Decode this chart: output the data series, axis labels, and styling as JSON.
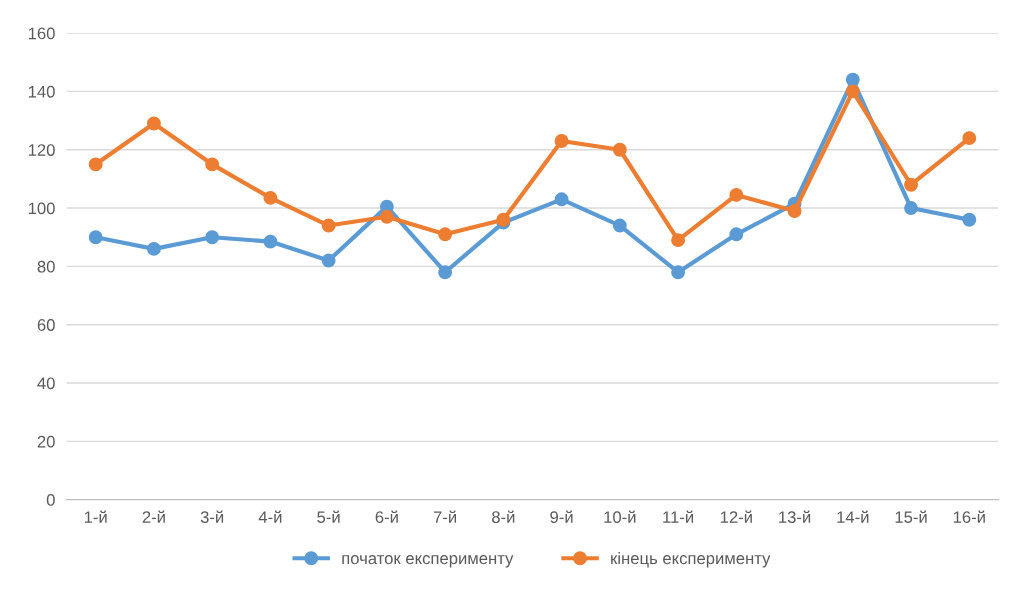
{
  "chart_data": {
    "type": "line",
    "categories": [
      "1-й",
      "2-й",
      "3-й",
      "4-й",
      "5-й",
      "6-й",
      "7-й",
      "8-й",
      "9-й",
      "10-й",
      "11-й",
      "12-й",
      "13-й",
      "14-й",
      "15-й",
      "16-й"
    ],
    "series": [
      {
        "name": "початок експерименту",
        "color": "#5b9bd5",
        "values": [
          90,
          86,
          90,
          88.5,
          82,
          100.5,
          78,
          95,
          103,
          94,
          78,
          91,
          101.5,
          144,
          100,
          96
        ]
      },
      {
        "name": "кінець експерименту",
        "color": "#ed7d31",
        "values": [
          115,
          129,
          115,
          103.5,
          94,
          97,
          91,
          96,
          123,
          120,
          89,
          104.5,
          99,
          140,
          108,
          124
        ]
      }
    ],
    "ylim": [
      0,
      160
    ],
    "yticks": [
      0,
      20,
      40,
      60,
      80,
      100,
      120,
      140,
      160
    ],
    "grid": "y",
    "legend": "bottom",
    "marker": "circle",
    "line_style": "solid"
  }
}
